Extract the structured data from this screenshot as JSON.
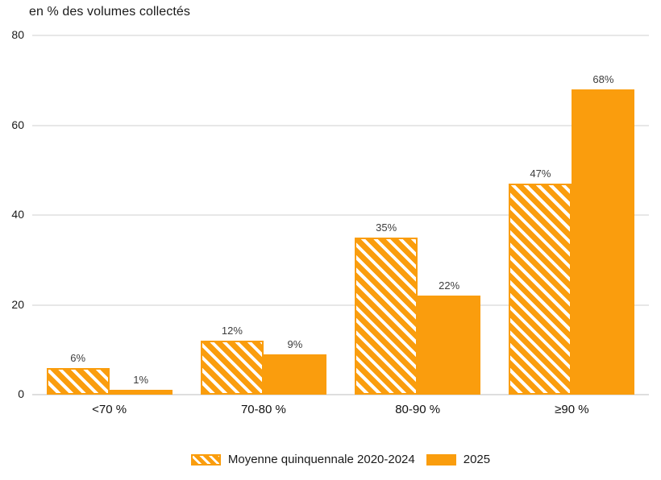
{
  "chart_data": {
    "type": "bar",
    "title": "en % des volumes collectés",
    "categories": [
      "<70 %",
      "70-80 %",
      "80-90 %",
      "≥90 %"
    ],
    "series": [
      {
        "name": "Moyenne quinquennale 2020-2024",
        "style": "hatched",
        "values": [
          6,
          12,
          35,
          47
        ],
        "labels": [
          "6%",
          "12%",
          "35%",
          "47%"
        ]
      },
      {
        "name": "2025",
        "style": "solid",
        "values": [
          1,
          9,
          22,
          68
        ],
        "labels": [
          "1%",
          "9%",
          "22%",
          "68%"
        ]
      }
    ],
    "ylabel": "",
    "xlabel": "",
    "ylim": [
      0,
      80
    ],
    "yticks": [
      0,
      20,
      40,
      60,
      80
    ],
    "grid": true,
    "legend_position": "bottom",
    "colors": {
      "bar_orange": "#FA9D0D",
      "gridline": "#E7E7E7",
      "value_label": "#3D3D3D",
      "axis_text": "#1A1A1A"
    }
  }
}
